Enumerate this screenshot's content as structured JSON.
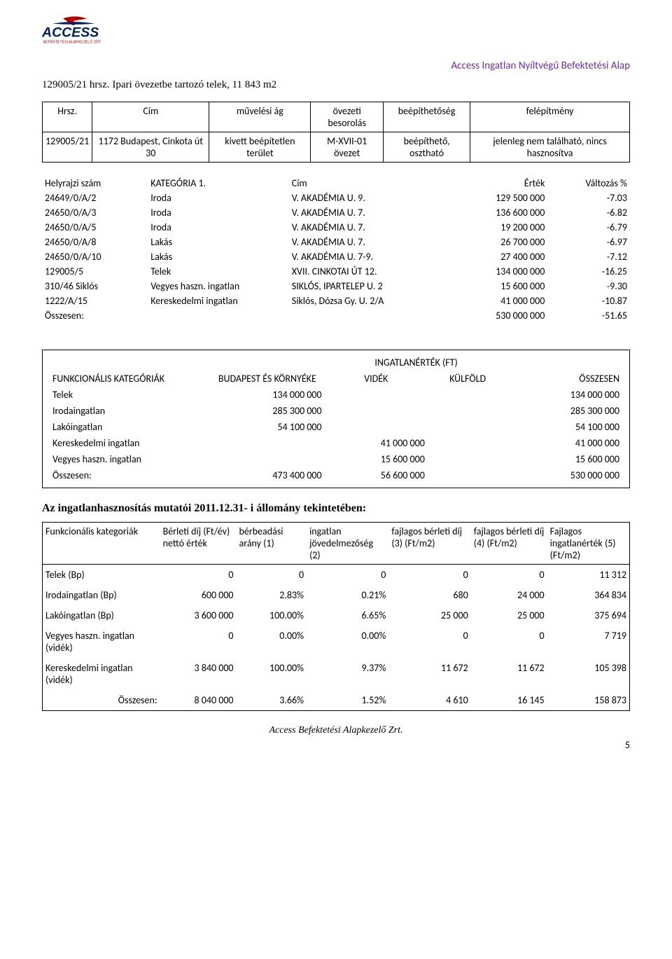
{
  "header": {
    "logo_main": "ACCESS",
    "logo_sub": "BEFEKTETÉSI ALAPKEZELŐ ZRT",
    "right_title": "Access Ingatlan Nyíltvégű Befektetési Alap"
  },
  "sec1_title": "129005/21 hrsz. Ipari övezetbe tartozó telek, 11 843 m2",
  "tbl1": {
    "headers": [
      "Hrsz.",
      "Cím",
      "művelési ág",
      "övezeti besorolás",
      "beépíthetőség",
      "felépítmény"
    ],
    "row": [
      "129005/21",
      "1172 Budapest, Cinkota út 30",
      "kivett beépítetlen terület",
      "M-XVII-01 övezet",
      "beépíthető, osztható",
      "jelenleg nem található, nincs hasznosítva"
    ]
  },
  "tbl2": {
    "headers": [
      "Helyrajzi szám",
      "KATEGÓRIA 1.",
      "Cím",
      "Érték",
      "Változás %"
    ],
    "rows": [
      [
        "24649/0/A/2",
        "Iroda",
        "V. AKADÉMIA U. 9.",
        "129 500 000",
        "-7.03"
      ],
      [
        "24650/0/A/3",
        "Iroda",
        "V. AKADÉMIA U. 7.",
        "136 600 000",
        "-6.82"
      ],
      [
        "24650/0/A/5",
        "Iroda",
        "V. AKADÉMIA U. 7.",
        "19 200 000",
        "-6.79"
      ],
      [
        "24650/0/A/8",
        "Lakás",
        "V. AKADÉMIA U. 7.",
        "26 700 000",
        "-6.97"
      ],
      [
        "24650/0/A/10",
        "Lakás",
        "V. AKADÉMIA U. 7-9.",
        "27 400 000",
        "-7.12"
      ],
      [
        "129005/5",
        "Telek",
        "XVII. CINKOTAI ÚT 12.",
        "134 000 000",
        "-16.25"
      ],
      [
        "310/46 Siklós",
        "Vegyes haszn. ingatlan",
        "SIKLÓS, IPARTELEP U. 2",
        "15 600 000",
        "-9.30"
      ],
      [
        "1222/A/15",
        "Kereskedelmi ingatlan",
        "Siklós, Dózsa Gy. U. 2/A",
        "41 000 000",
        "-10.87"
      ]
    ],
    "total_label": "Összesen:",
    "total_value": "530 000 000",
    "total_pct": "-51.65"
  },
  "tbl3": {
    "title": "INGATLANÉRTÉK (FT)",
    "col_labels": [
      "FUNKCIONÁLIS KATEGÓRIÁK",
      "BUDAPEST ÉS KÖRNYÉKE",
      "VIDÉK",
      "KÜLFÖLD",
      "ÖSSZESEN"
    ],
    "rows": [
      [
        "Telek",
        "134 000 000",
        "",
        "",
        "134 000 000"
      ],
      [
        "Irodaingatlan",
        "285 300 000",
        "",
        "",
        "285 300 000"
      ],
      [
        "Lakóingatlan",
        "54 100 000",
        "",
        "",
        "54 100 000"
      ],
      [
        "Kereskedelmi ingatlan",
        "",
        "41 000 000",
        "",
        "41 000 000"
      ],
      [
        "Vegyes haszn. ingatlan",
        "",
        "15 600 000",
        "",
        "15 600 000"
      ]
    ],
    "total_label": "Összesen:",
    "totals": [
      "473 400 000",
      "56 600 000",
      "",
      "530 000 000"
    ]
  },
  "sec4_title": "Az ingatlanhasznosítás mutatói 2011.12.31- i állomány tekintetében:",
  "tbl4": {
    "headers": [
      "Funkcionális kategoriák",
      "Bérleti díj (Ft/év) nettó érték",
      "bérbeadási arány (1)",
      "ingatlan jövedelmezőség (2)",
      "fajlagos bérleti díj (3) (Ft/m2)",
      "fajlagos bérleti díj (4) (Ft/m2)",
      "Fajlagos ingatlanérték (5) (Ft/m2)"
    ],
    "rows": [
      [
        "Telek (Bp)",
        "0",
        "0",
        "0",
        "0",
        "0",
        "11 312"
      ],
      [
        "Irodaingatlan (Bp)",
        "600 000",
        "2.83%",
        "0.21%",
        "680",
        "24 000",
        "364 834"
      ],
      [
        "Lakóingatlan (Bp)",
        "3 600 000",
        "100.00%",
        "6.65%",
        "25 000",
        "25 000",
        "375 694"
      ],
      [
        "Vegyes haszn. ingatlan (vidék)",
        "0",
        "0.00%",
        "0.00%",
        "0",
        "0",
        "7 719"
      ],
      [
        "Kereskedelmi ingatlan (vidék)",
        "3 840 000",
        "100.00%",
        "9.37%",
        "11 672",
        "11 672",
        "105 398"
      ]
    ],
    "total_label": "Összesen:",
    "totals": [
      "8 040 000",
      "3.66%",
      "1.52%",
      "4 610",
      "16 145",
      "158 873"
    ]
  },
  "footer": {
    "text": "Access Befektetési Alapkezelő Zrt.",
    "page": "5"
  }
}
